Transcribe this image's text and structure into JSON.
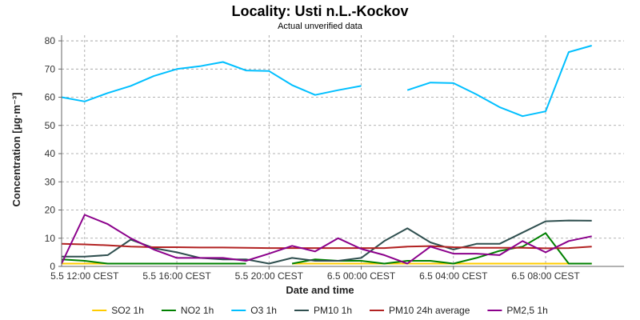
{
  "colors": {
    "background": "#ffffff",
    "grid": "#9a9a9a",
    "axis": "#666666"
  },
  "chart_data": {
    "type": "line",
    "title": "Locality: Usti n.L.-Kockov",
    "subtitle": "Actual unverified data",
    "xlabel": "Date and time",
    "ylabel": "Concentration [µg·m⁻³]",
    "ylim": [
      0,
      82
    ],
    "yticks": [
      0,
      10,
      20,
      30,
      40,
      50,
      60,
      70,
      80
    ],
    "xlim": [
      11,
      35.4
    ],
    "xticks": [
      {
        "x": 12,
        "label": "5.5 12:00 CEST"
      },
      {
        "x": 16,
        "label": "5.5 16:00 CEST"
      },
      {
        "x": 20,
        "label": "5.5 20:00 CEST"
      },
      {
        "x": 24,
        "label": "6.5 00:00 CEST"
      },
      {
        "x": 28,
        "label": "6.5 04:00 CEST"
      },
      {
        "x": 32,
        "label": "6.5 08:00 CEST"
      }
    ],
    "vgrid": [
      12,
      16,
      20,
      24,
      28,
      32
    ],
    "grid": true,
    "legend_position": "bottom",
    "x": [
      11,
      12,
      13,
      14,
      15,
      16,
      17,
      18,
      19,
      20,
      21,
      22,
      23,
      24,
      25,
      26,
      27,
      28,
      29,
      30,
      31,
      32,
      33,
      34
    ],
    "series": [
      {
        "name": "SO2 1h",
        "color": "#ffcc00",
        "values": [
          1,
          1,
          1,
          1,
          1,
          1,
          1,
          1,
          1,
          null,
          1,
          1,
          1,
          1,
          1,
          1,
          1,
          1,
          1,
          1,
          1,
          1,
          1,
          1
        ]
      },
      {
        "name": "NO2 1h",
        "color": "#008000",
        "values": [
          2.5,
          2,
          1,
          1,
          1,
          1,
          1,
          1,
          1,
          null,
          1,
          2.5,
          2,
          2,
          1,
          2,
          2,
          1,
          3,
          5.5,
          7,
          11.8,
          1,
          1
        ]
      },
      {
        "name": "O3 1h",
        "color": "#00bfff",
        "values": [
          60,
          58.5,
          61.5,
          64,
          67.5,
          70,
          71,
          72.5,
          69.5,
          69.3,
          64.3,
          60.8,
          62.5,
          64,
          null,
          62.5,
          65.2,
          65,
          61,
          56.5,
          53.3,
          55,
          76,
          78.3
        ]
      },
      {
        "name": "PM10 1h",
        "color": "#2f4f4f",
        "values": [
          3.5,
          3.5,
          4,
          9.5,
          6.5,
          5,
          3,
          2.5,
          2.5,
          1,
          3,
          2,
          2,
          3,
          9,
          13.5,
          8.5,
          6,
          8,
          8,
          12,
          16,
          16.3,
          16.2
        ]
      },
      {
        "name": "PM10 24h average",
        "color": "#b22222",
        "values": [
          8,
          7.8,
          7.5,
          7,
          6.8,
          6.8,
          6.7,
          6.7,
          6.6,
          6.5,
          6.5,
          6.5,
          6.5,
          6.5,
          6.5,
          7,
          7.2,
          6.8,
          6.6,
          6.6,
          6.6,
          6.4,
          6.5,
          7
        ]
      },
      {
        "name": "PM2,5 1h",
        "color": "#8b008b",
        "values": [
          1,
          18.3,
          15,
          10,
          6,
          3,
          3,
          3,
          2,
          4.5,
          7.3,
          5.3,
          10,
          6.2,
          4,
          1,
          7,
          4.5,
          4.5,
          4,
          9,
          5,
          9,
          10.7
        ]
      }
    ]
  }
}
